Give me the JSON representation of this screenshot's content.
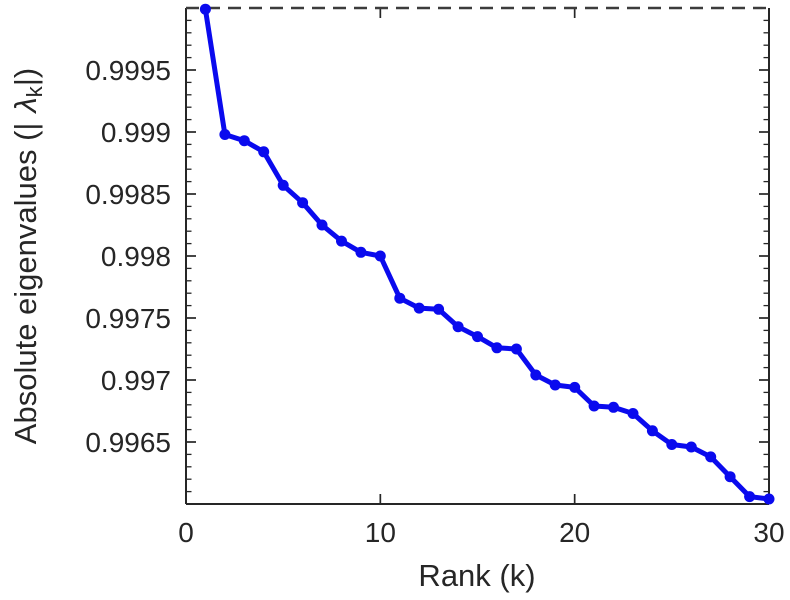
{
  "figure": {
    "background": "#ffffff",
    "axis_color": "#262626",
    "text_color": "#262626"
  },
  "labels": {
    "xlabel": "Rank (k)",
    "ylabel_prefix": "Absolute eigenvalues (|",
    "ylabel_symbol": "λ",
    "ylabel_subscript": "k",
    "ylabel_suffix": "|)"
  },
  "chart_data": {
    "type": "line",
    "title": "",
    "xlabel": "Rank (k)",
    "ylabel": "Absolute eigenvalues (|λ_k|)",
    "series": [
      {
        "name": "absolute-eigenvalues",
        "color": "#0a0aee",
        "marker": "filled-circle",
        "x": [
          1,
          2,
          3,
          4,
          5,
          6,
          7,
          8,
          9,
          10,
          11,
          12,
          13,
          14,
          15,
          16,
          17,
          18,
          19,
          20,
          21,
          22,
          23,
          24,
          25,
          26,
          27,
          28,
          29,
          30
        ],
        "y": [
          0.99999,
          0.99898,
          0.99893,
          0.99884,
          0.99857,
          0.99843,
          0.99825,
          0.99812,
          0.99803,
          0.998,
          0.99766,
          0.99758,
          0.99757,
          0.99743,
          0.99735,
          0.99726,
          0.99725,
          0.99704,
          0.99696,
          0.99694,
          0.99679,
          0.99678,
          0.99673,
          0.99659,
          0.99648,
          0.99646,
          0.99638,
          0.99622,
          0.99606,
          0.99604
        ]
      }
    ],
    "xlim": [
      0,
      30
    ],
    "ylim": [
      0.996,
      1.0
    ],
    "xticks": [
      0,
      10,
      20,
      30
    ],
    "xtick_labels": [
      "0",
      "10",
      "20",
      "30"
    ],
    "yticks": [
      0.9965,
      0.997,
      0.9975,
      0.998,
      0.9985,
      0.999,
      0.9995
    ],
    "ytick_labels": [
      "0.9965",
      "0.997",
      "0.9975",
      "0.998",
      "0.9985",
      "0.999",
      "0.9995"
    ],
    "y_minor_tick_step": 0.0001,
    "grid": false,
    "legend": null,
    "reference_line": {
      "y": 1.0,
      "style": "dashed",
      "color": "#3c3c3c"
    }
  }
}
